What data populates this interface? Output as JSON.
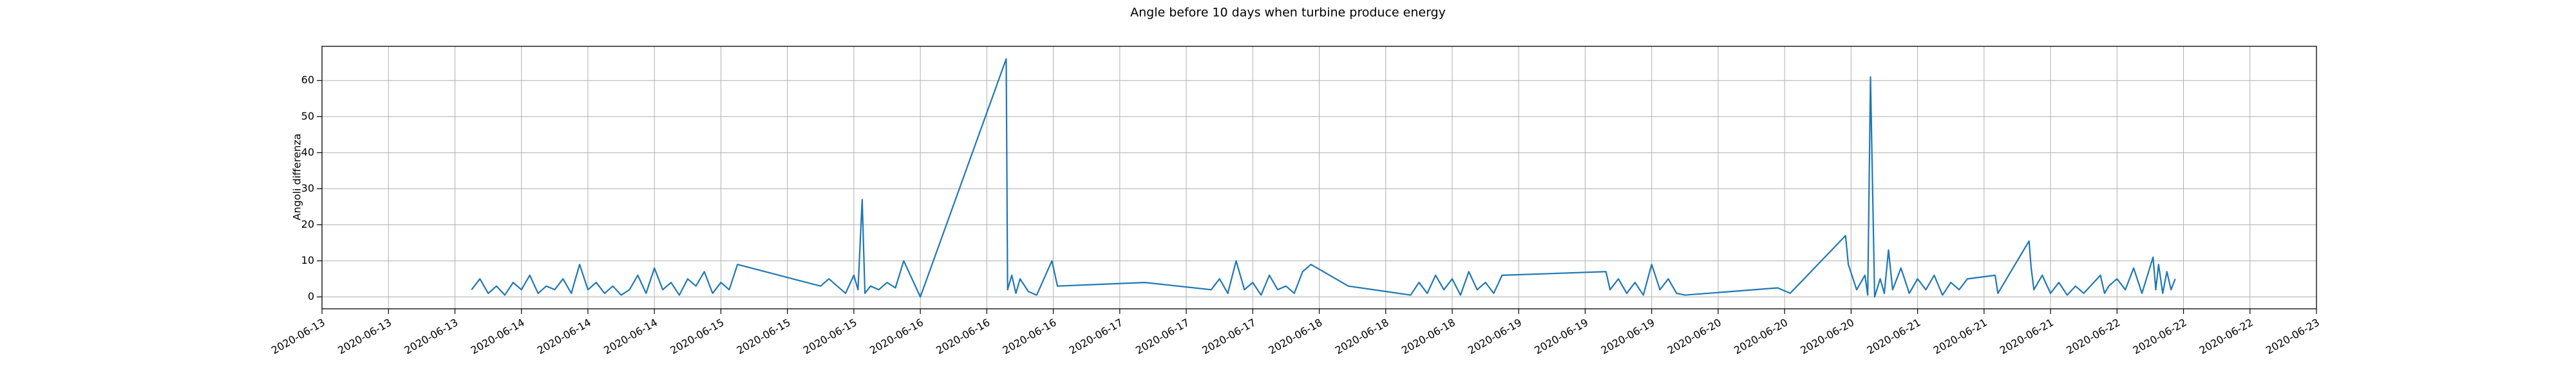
{
  "chart_data": {
    "type": "line",
    "title": "Angle before 10 days when turbine produce energy",
    "y_label": "Angoli differenza",
    "grid": true,
    "xlim": [
      "2020-06-13T00:00",
      "2020-06-23T00:00"
    ],
    "xticks": [
      {
        "value": "2020-06-13T00:00",
        "label": "2020-06-13"
      },
      {
        "value": "2020-06-13T08:00",
        "label": "2020-06-13"
      },
      {
        "value": "2020-06-13T16:00",
        "label": "2020-06-13"
      },
      {
        "value": "2020-06-14T00:00",
        "label": "2020-06-14"
      },
      {
        "value": "2020-06-14T08:00",
        "label": "2020-06-14"
      },
      {
        "value": "2020-06-14T16:00",
        "label": "2020-06-14"
      },
      {
        "value": "2020-06-15T00:00",
        "label": "2020-06-15"
      },
      {
        "value": "2020-06-15T08:00",
        "label": "2020-06-15"
      },
      {
        "value": "2020-06-15T16:00",
        "label": "2020-06-15"
      },
      {
        "value": "2020-06-16T00:00",
        "label": "2020-06-16"
      },
      {
        "value": "2020-06-16T08:00",
        "label": "2020-06-16"
      },
      {
        "value": "2020-06-16T16:00",
        "label": "2020-06-16"
      },
      {
        "value": "2020-06-17T00:00",
        "label": "2020-06-17"
      },
      {
        "value": "2020-06-17T08:00",
        "label": "2020-06-17"
      },
      {
        "value": "2020-06-17T16:00",
        "label": "2020-06-17"
      },
      {
        "value": "2020-06-18T00:00",
        "label": "2020-06-18"
      },
      {
        "value": "2020-06-18T08:00",
        "label": "2020-06-18"
      },
      {
        "value": "2020-06-18T16:00",
        "label": "2020-06-18"
      },
      {
        "value": "2020-06-19T00:00",
        "label": "2020-06-19"
      },
      {
        "value": "2020-06-19T08:00",
        "label": "2020-06-19"
      },
      {
        "value": "2020-06-19T16:00",
        "label": "2020-06-19"
      },
      {
        "value": "2020-06-20T00:00",
        "label": "2020-06-20"
      },
      {
        "value": "2020-06-20T08:00",
        "label": "2020-06-20"
      },
      {
        "value": "2020-06-20T16:00",
        "label": "2020-06-20"
      },
      {
        "value": "2020-06-21T00:00",
        "label": "2020-06-21"
      },
      {
        "value": "2020-06-21T08:00",
        "label": "2020-06-21"
      },
      {
        "value": "2020-06-21T16:00",
        "label": "2020-06-21"
      },
      {
        "value": "2020-06-22T00:00",
        "label": "2020-06-22"
      },
      {
        "value": "2020-06-22T08:00",
        "label": "2020-06-22"
      },
      {
        "value": "2020-06-22T16:00",
        "label": "2020-06-22"
      },
      {
        "value": "2020-06-23T00:00",
        "label": "2020-06-23"
      }
    ],
    "ylim": [
      -3.3,
      69.5
    ],
    "yticks": [
      0,
      10,
      20,
      30,
      40,
      50,
      60
    ],
    "x": [
      "2020-06-13T18:00",
      "2020-06-13T19:00",
      "2020-06-13T20:00",
      "2020-06-13T21:00",
      "2020-06-13T22:00",
      "2020-06-13T23:00",
      "2020-06-14T00:00",
      "2020-06-14T01:00",
      "2020-06-14T02:00",
      "2020-06-14T03:00",
      "2020-06-14T04:00",
      "2020-06-14T05:00",
      "2020-06-14T06:00",
      "2020-06-14T07:00",
      "2020-06-14T08:00",
      "2020-06-14T09:00",
      "2020-06-14T10:00",
      "2020-06-14T11:00",
      "2020-06-14T12:00",
      "2020-06-14T13:00",
      "2020-06-14T14:00",
      "2020-06-14T15:00",
      "2020-06-14T16:00",
      "2020-06-14T17:00",
      "2020-06-14T18:00",
      "2020-06-14T19:00",
      "2020-06-14T20:00",
      "2020-06-14T21:00",
      "2020-06-14T22:00",
      "2020-06-14T23:00",
      "2020-06-15T00:00",
      "2020-06-15T01:00",
      "2020-06-15T02:00",
      "2020-06-15T12:00",
      "2020-06-15T13:00",
      "2020-06-15T14:00",
      "2020-06-15T15:00",
      "2020-06-15T16:00",
      "2020-06-15T16:30",
      "2020-06-15T17:00",
      "2020-06-15T17:20",
      "2020-06-15T18:00",
      "2020-06-15T19:00",
      "2020-06-15T20:00",
      "2020-06-15T21:00",
      "2020-06-15T22:00",
      "2020-06-16T00:00",
      "2020-06-16T10:20",
      "2020-06-16T10:30",
      "2020-06-16T11:00",
      "2020-06-16T11:30",
      "2020-06-16T12:00",
      "2020-06-16T13:00",
      "2020-06-16T14:00",
      "2020-06-16T15:50",
      "2020-06-16T16:30",
      "2020-06-17T03:00",
      "2020-06-17T11:00",
      "2020-06-17T12:00",
      "2020-06-17T13:00",
      "2020-06-17T14:00",
      "2020-06-17T15:00",
      "2020-06-17T16:00",
      "2020-06-17T17:00",
      "2020-06-17T18:00",
      "2020-06-17T19:00",
      "2020-06-17T20:00",
      "2020-06-17T21:00",
      "2020-06-17T22:00",
      "2020-06-17T23:00",
      "2020-06-18T02:00",
      "2020-06-18T03:30",
      "2020-06-18T11:00",
      "2020-06-18T12:00",
      "2020-06-18T13:00",
      "2020-06-18T14:00",
      "2020-06-18T15:00",
      "2020-06-18T16:00",
      "2020-06-18T17:00",
      "2020-06-18T18:00",
      "2020-06-18T19:00",
      "2020-06-18T20:00",
      "2020-06-18T21:00",
      "2020-06-18T22:00",
      "2020-06-19T10:30",
      "2020-06-19T11:00",
      "2020-06-19T12:00",
      "2020-06-19T13:00",
      "2020-06-19T14:00",
      "2020-06-19T15:00",
      "2020-06-19T16:00",
      "2020-06-19T17:00",
      "2020-06-19T18:00",
      "2020-06-19T19:00",
      "2020-06-19T20:00",
      "2020-06-20T07:10",
      "2020-06-20T08:40",
      "2020-06-20T15:20",
      "2020-06-20T15:40",
      "2020-06-20T16:40",
      "2020-06-20T17:40",
      "2020-06-20T18:00",
      "2020-06-20T18:20",
      "2020-06-20T18:50",
      "2020-06-20T19:30",
      "2020-06-20T20:00",
      "2020-06-20T20:30",
      "2020-06-20T21:00",
      "2020-06-20T22:00",
      "2020-06-20T23:00",
      "2020-06-21T00:00",
      "2020-06-21T01:00",
      "2020-06-21T02:00",
      "2020-06-21T03:00",
      "2020-06-21T04:00",
      "2020-06-21T05:00",
      "2020-06-21T06:00",
      "2020-06-21T09:20",
      "2020-06-21T09:40",
      "2020-06-21T13:25",
      "2020-06-21T13:40",
      "2020-06-21T14:00",
      "2020-06-21T15:00",
      "2020-06-21T16:00",
      "2020-06-21T17:00",
      "2020-06-21T18:00",
      "2020-06-21T19:00",
      "2020-06-21T20:00",
      "2020-06-21T22:00",
      "2020-06-21T22:30",
      "2020-06-21T23:00",
      "2020-06-22T00:00",
      "2020-06-22T01:00",
      "2020-06-22T02:00",
      "2020-06-22T03:00",
      "2020-06-22T04:20",
      "2020-06-22T04:40",
      "2020-06-22T05:00",
      "2020-06-22T05:30",
      "2020-06-22T06:00",
      "2020-06-22T06:30",
      "2020-06-22T07:00"
    ],
    "series": [
      {
        "color": "#1f77b4",
        "values": [
          2,
          5,
          1,
          3,
          0.5,
          4,
          2,
          6,
          1,
          3,
          2,
          5,
          1,
          9,
          2,
          4,
          1,
          3,
          0.5,
          2,
          6,
          1,
          8,
          2,
          4,
          0.5,
          5,
          3,
          7,
          1,
          4,
          2,
          9,
          3,
          5,
          3,
          1,
          6,
          2,
          27,
          1,
          3,
          2,
          4,
          2.5,
          10,
          0,
          66,
          2,
          6,
          1,
          5,
          1.5,
          0.5,
          10,
          3,
          4,
          2,
          5,
          1,
          10,
          2,
          4,
          0.5,
          6,
          2,
          3,
          1,
          7,
          9,
          5,
          3,
          0.5,
          4,
          1,
          6,
          2,
          5,
          0.5,
          7,
          2,
          4,
          1,
          6,
          7,
          2,
          5,
          1,
          4,
          0.5,
          9,
          2,
          5,
          1,
          0.5,
          2.5,
          1,
          17,
          9,
          2,
          6,
          0.5,
          61,
          0,
          5,
          1,
          13,
          2,
          8,
          1,
          5,
          2,
          6,
          0.5,
          4,
          2,
          5,
          6,
          1,
          15.5,
          8,
          2,
          6,
          1,
          4,
          0.5,
          3,
          1,
          6,
          1,
          3,
          5,
          2,
          8,
          1,
          11,
          2,
          9,
          1,
          7,
          2,
          5
        ]
      }
    ]
  }
}
